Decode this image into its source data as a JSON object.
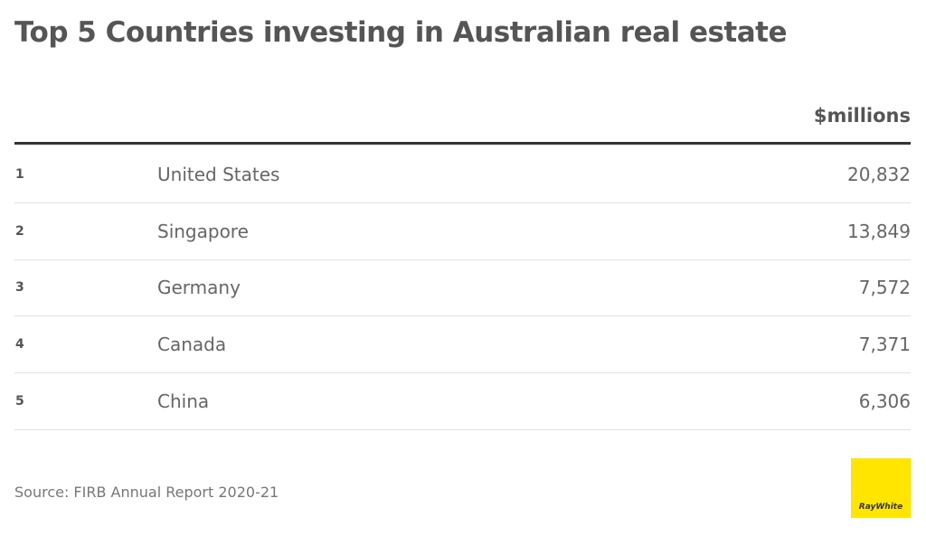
{
  "header": {
    "title": "Top 5 Countries investing in Australian real estate"
  },
  "table": {
    "columns": [
      "$millions"
    ],
    "rows": [
      [
        "1",
        "United States",
        "20,832"
      ],
      [
        "2",
        "Singapore",
        "13,849"
      ],
      [
        "3",
        "Germany",
        "7,572"
      ],
      [
        "4",
        "Canada",
        "7,371"
      ],
      [
        "5",
        "China",
        "6,306"
      ]
    ]
  },
  "footer": {
    "source": "Source: FIRB Annual Report 2020-21",
    "logo": "RayWhite"
  }
}
